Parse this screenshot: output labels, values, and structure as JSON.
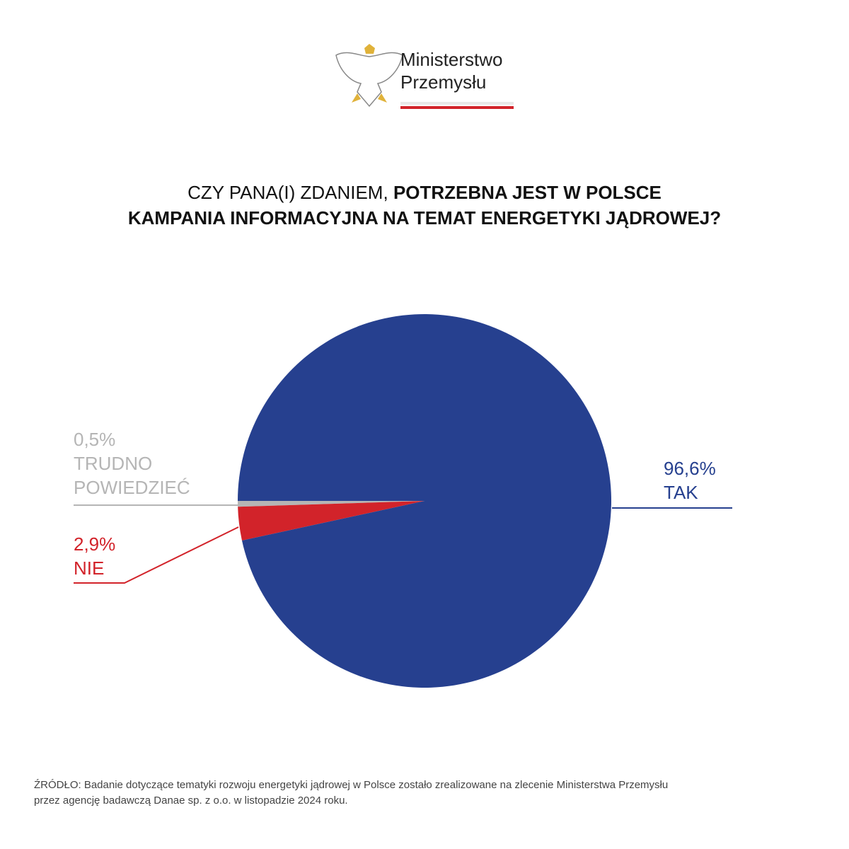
{
  "header": {
    "ministry_lines": [
      "Ministerstwo",
      "Przemysłu"
    ]
  },
  "chart_data": {
    "type": "pie",
    "title_parts": [
      "CZY PANA(I) ZDANIEM,",
      "POTRZEBNA JEST W POLSCE",
      "KAMPANIA INFORMACYJNA NA TEMAT ENERGETYKI JĄDROWEJ?"
    ],
    "categories": [
      "TAK",
      "NIE",
      "TRUDNO POWIEDZIEĆ"
    ],
    "values": [
      96.6,
      2.9,
      0.5
    ],
    "value_labels": [
      "96,6%",
      "2,9%",
      "0,5%"
    ],
    "colors": [
      "#26408f",
      "#d2232a",
      "#b5b5b5"
    ]
  },
  "footer": {
    "lines": [
      "ŹRÓDŁO: Badanie dotyczące tematyki rozwoju energetyki jądrowej w Polsce zostało zrealizowane na zlecenie Ministerstwa Przemysłu",
      "przez agencję badawczą Danae sp. z o.o. w listopadzie 2024 roku."
    ]
  }
}
